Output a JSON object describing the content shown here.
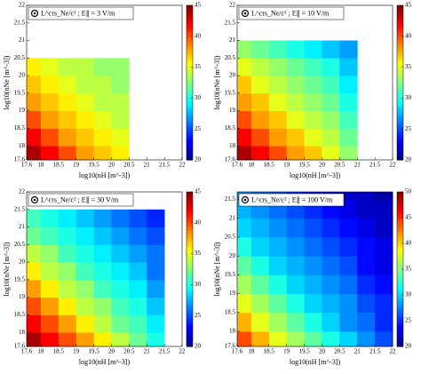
{
  "chart_data": [
    {
      "type": "heatmap",
      "label": "L^crs_Ne/c² ; E∥ = 3 V/m",
      "x_label": "log10(nH [m^-3])",
      "y_label": "log10(nNe [m^-3])",
      "colormap": "jet",
      "xlim": [
        17.6,
        22
      ],
      "ylim": [
        17.6,
        22
      ],
      "xticks": [
        17.6,
        18,
        18.5,
        19,
        19.5,
        20,
        20.5,
        21,
        21.5,
        22
      ],
      "yticks": [
        17.6,
        18,
        18.5,
        19,
        19.5,
        20,
        20.5,
        21,
        21.5,
        22
      ],
      "clim": [
        20,
        45
      ],
      "cticks": [
        20,
        25,
        30,
        35,
        40,
        45
      ],
      "xbins": [
        17.6,
        18,
        18.5,
        19,
        19.5,
        20,
        20.5
      ],
      "ybins": [
        17.6,
        18,
        18.5,
        19,
        19.5,
        20,
        20.5
      ],
      "values": [
        [
          44,
          42,
          40,
          38,
          37,
          36
        ],
        [
          42,
          40,
          38,
          37,
          36,
          35
        ],
        [
          40,
          38,
          37,
          36,
          35,
          34
        ],
        [
          38,
          37,
          36,
          35,
          34,
          34
        ],
        [
          37,
          36,
          35,
          34,
          34,
          33
        ],
        [
          36,
          35,
          34,
          34,
          33,
          33
        ]
      ]
    },
    {
      "type": "heatmap",
      "label": "L^crs_Ne/c² ; E∥ = 10 V/m",
      "x_label": "log10(nH [m^-3])",
      "y_label": "log10(nNe [m^-3])",
      "colormap": "jet",
      "xlim": [
        17.6,
        22
      ],
      "ylim": [
        17.6,
        22
      ],
      "xticks": [
        17.6,
        18,
        18.5,
        19,
        19.5,
        20,
        20.5,
        21,
        21.5,
        22
      ],
      "yticks": [
        17.6,
        18,
        18.5,
        19,
        19.5,
        20,
        20.5,
        21,
        21.5,
        22
      ],
      "clim": [
        20,
        45
      ],
      "cticks": [
        20,
        25,
        30,
        35,
        40,
        45
      ],
      "xbins": [
        17.6,
        18,
        18.5,
        19,
        19.5,
        20,
        20.5,
        21
      ],
      "ybins": [
        17.6,
        18,
        18.5,
        19,
        19.5,
        20,
        20.5,
        21
      ],
      "values": [
        [
          44,
          42,
          40,
          38,
          37,
          35,
          33
        ],
        [
          42,
          40,
          38,
          37,
          35,
          34,
          32
        ],
        [
          40,
          38,
          37,
          35,
          34,
          33,
          31
        ],
        [
          38,
          37,
          35,
          34,
          33,
          32,
          30
        ],
        [
          37,
          35,
          34,
          33,
          32,
          31,
          29
        ],
        [
          35,
          34,
          33,
          32,
          31,
          30,
          28
        ],
        [
          33,
          32,
          31,
          30,
          29,
          28,
          27
        ]
      ]
    },
    {
      "type": "heatmap",
      "label": "L^crs_Ne/c² ; E∥ = 30 V/m",
      "x_label": "log10(nH [m^-3])",
      "y_label": "log10(nNe [m^-3])",
      "colormap": "jet",
      "xlim": [
        17.6,
        22
      ],
      "ylim": [
        17.6,
        22
      ],
      "xticks": [
        17.6,
        18,
        18.5,
        19,
        19.5,
        20,
        20.5,
        21,
        21.5,
        22
      ],
      "yticks": [
        17.6,
        18,
        18.5,
        19,
        19.5,
        20,
        20.5,
        21,
        21.5,
        22
      ],
      "clim": [
        20,
        45
      ],
      "cticks": [
        20,
        25,
        30,
        35,
        40,
        45
      ],
      "xbins": [
        17.6,
        18,
        18.5,
        19,
        19.5,
        20,
        20.5,
        21,
        21.5
      ],
      "ybins": [
        17.6,
        18,
        18.5,
        19,
        19.5,
        20,
        20.5,
        21,
        21.5
      ],
      "values": [
        [
          44,
          42,
          40,
          38,
          36,
          34,
          32,
          30
        ],
        [
          42,
          40,
          38,
          36,
          34,
          32,
          31,
          29
        ],
        [
          40,
          38,
          36,
          34,
          33,
          31,
          30,
          28
        ],
        [
          38,
          36,
          34,
          33,
          31,
          30,
          29,
          27
        ],
        [
          36,
          34,
          33,
          31,
          30,
          29,
          28,
          26
        ],
        [
          34,
          33,
          31,
          30,
          29,
          28,
          27,
          26
        ],
        [
          32,
          31,
          30,
          29,
          28,
          27,
          26,
          25
        ],
        [
          31,
          30,
          29,
          28,
          27,
          26,
          25,
          24
        ]
      ]
    },
    {
      "type": "heatmap",
      "label": "L^crs_Ne/c² ; E∥ = 100 V/m",
      "x_label": "log10(nH [m^-3])",
      "y_label": "log10(nNe [m^-3])",
      "colormap": "jet",
      "xlim": [
        17.6,
        22
      ],
      "ylim": [
        17.6,
        21.7
      ],
      "xticks": [
        17.6,
        18,
        18.5,
        19,
        19.5,
        20,
        20.5,
        21,
        21.5,
        22
      ],
      "yticks": [
        17.6,
        18,
        18.5,
        19,
        19.5,
        20,
        20.5,
        21,
        21.5
      ],
      "clim": [
        20,
        50
      ],
      "cticks": [
        20,
        25,
        30,
        35,
        40,
        45,
        50
      ],
      "xbins": [
        17.6,
        18,
        18.5,
        19,
        19.5,
        20,
        20.5,
        21,
        21.5,
        22
      ],
      "ybins": [
        17.6,
        18,
        18.5,
        19,
        19.5,
        20,
        20.5,
        21,
        21.5,
        21.7
      ],
      "values": [
        [
          44,
          41,
          38,
          36,
          34,
          32,
          30,
          28,
          26
        ],
        [
          41,
          38,
          36,
          34,
          32,
          30,
          28,
          27,
          25
        ],
        [
          38,
          36,
          34,
          32,
          30,
          29,
          28,
          26,
          25
        ],
        [
          36,
          34,
          32,
          30,
          29,
          28,
          27,
          25,
          24
        ],
        [
          34,
          32,
          30,
          29,
          28,
          27,
          26,
          24,
          23
        ],
        [
          32,
          30,
          29,
          28,
          27,
          26,
          25,
          24,
          23
        ],
        [
          30,
          29,
          28,
          27,
          26,
          25,
          24,
          23,
          22
        ],
        [
          29,
          28,
          27,
          26,
          25,
          24,
          23,
          22,
          22
        ],
        [
          28,
          27,
          26,
          25,
          24,
          23,
          22,
          22,
          21
        ]
      ]
    }
  ]
}
